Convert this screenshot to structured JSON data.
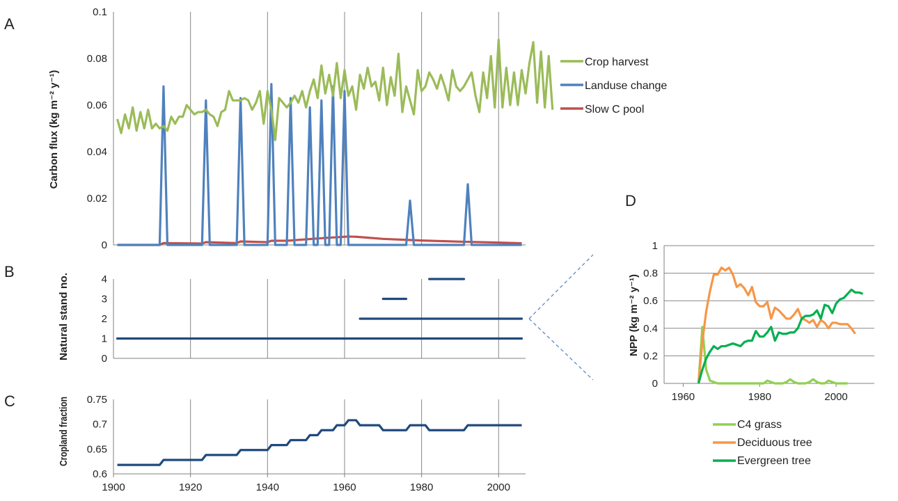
{
  "colors": {
    "crop": "#9bbb59",
    "landuse": "#4f81bd",
    "slow": "#c0504d",
    "stand": "#1f497d",
    "c4": "#8fd14f",
    "decid": "#f79646",
    "ever": "#00b050",
    "grid": "#868686",
    "axis": "#808080"
  },
  "chart_data": [
    {
      "id": "A",
      "type": "line",
      "panel_label": "A",
      "ylabel": "Carbon flux (kg m⁻² y⁻¹)",
      "ylim": [
        0,
        0.1
      ],
      "yticks": [
        "0",
        "0.02",
        "0.04",
        "0.06",
        "0.08",
        "0.1"
      ],
      "xlim": [
        1900,
        2007
      ],
      "grid": "vertical",
      "legend_position": "right",
      "series": [
        {
          "name": "Crop harvest",
          "x_start": 1901,
          "x_step": 1,
          "values": [
            0.054,
            0.048,
            0.056,
            0.05,
            0.059,
            0.049,
            0.057,
            0.05,
            0.058,
            0.05,
            0.052,
            0.05,
            0.051,
            0.049,
            0.055,
            0.052,
            0.055,
            0.055,
            0.06,
            0.058,
            0.056,
            0.057,
            0.057,
            0.058,
            0.056,
            0.055,
            0.051,
            0.057,
            0.058,
            0.066,
            0.062,
            0.062,
            0.062,
            0.063,
            0.062,
            0.058,
            0.061,
            0.066,
            0.052,
            0.066,
            0.058,
            0.045,
            0.063,
            0.061,
            0.059,
            0.061,
            0.064,
            0.061,
            0.066,
            0.059,
            0.066,
            0.071,
            0.063,
            0.077,
            0.065,
            0.073,
            0.064,
            0.078,
            0.063,
            0.075,
            0.064,
            0.068,
            0.058,
            0.073,
            0.067,
            0.076,
            0.068,
            0.07,
            0.062,
            0.076,
            0.06,
            0.072,
            0.064,
            0.082,
            0.057,
            0.068,
            0.062,
            0.056,
            0.075,
            0.066,
            0.068,
            0.074,
            0.071,
            0.067,
            0.073,
            0.068,
            0.062,
            0.075,
            0.068,
            0.066,
            0.068,
            0.071,
            0.074,
            0.064,
            0.057,
            0.074,
            0.063,
            0.081,
            0.059,
            0.088,
            0.059,
            0.076,
            0.06,
            0.074,
            0.06,
            0.075,
            0.065,
            0.078,
            0.087,
            0.061,
            0.083,
            0.059,
            0.081,
            0.058
          ]
        },
        {
          "name": "Landuse change",
          "x": [
            1901,
            1912,
            1913,
            1914,
            1923,
            1924,
            1925,
            1932,
            1933,
            1934,
            1940,
            1941,
            1942,
            1945,
            1946,
            1947,
            1950,
            1951,
            1952,
            1953,
            1954,
            1955,
            1956,
            1957,
            1958,
            1959,
            1960,
            1961,
            1976,
            1977,
            1978,
            1991,
            1992,
            1993,
            2006
          ],
          "values": [
            0,
            0,
            0.068,
            0,
            0,
            0.062,
            0,
            0,
            0.063,
            0,
            0,
            0.069,
            0,
            0,
            0.063,
            0,
            0,
            0.059,
            0,
            0,
            0.062,
            0,
            0,
            0.068,
            0,
            0,
            0.066,
            0,
            0,
            0.019,
            0,
            0,
            0.026,
            0,
            0
          ]
        },
        {
          "name": "Slow C pool",
          "x": [
            1901,
            1912,
            1913,
            1923,
            1924,
            1932,
            1933,
            1940,
            1941,
            1945,
            1950,
            1955,
            1958,
            1961,
            1963,
            1970,
            1980,
            1990,
            2000,
            2006
          ],
          "values": [
            0,
            0,
            0.0008,
            0.0006,
            0.0012,
            0.0008,
            0.0015,
            0.0012,
            0.0018,
            0.0018,
            0.0024,
            0.003,
            0.0033,
            0.0036,
            0.0035,
            0.0026,
            0.0019,
            0.0014,
            0.001,
            0.0007
          ]
        }
      ]
    },
    {
      "id": "B",
      "type": "line",
      "panel_label": "B",
      "ylabel": "Natural stand no.",
      "ylim": [
        0,
        4
      ],
      "yticks": [
        "0",
        "1",
        "2",
        "3",
        "4"
      ],
      "xlim": [
        1900,
        2007
      ],
      "grid": "vertical",
      "series": [
        {
          "segments": [
            [
              1901,
              2006,
              1
            ],
            [
              1964,
              2006,
              2
            ],
            [
              1970,
              1976,
              3
            ],
            [
              1982,
              1991,
              4
            ]
          ]
        }
      ]
    },
    {
      "id": "C",
      "type": "line",
      "panel_label": "C",
      "ylabel": "Cropland fraction",
      "ylim": [
        0.6,
        0.75
      ],
      "yticks": [
        "0.6",
        "0.65",
        "0.7",
        "0.75"
      ],
      "xlim": [
        1900,
        2007
      ],
      "xticks": [
        "1900",
        "1920",
        "1940",
        "1960",
        "1980",
        "2000"
      ],
      "grid": "vertical",
      "series": [
        {
          "x": [
            1901,
            1912,
            1913,
            1923,
            1924,
            1932,
            1933,
            1940,
            1941,
            1945,
            1946,
            1950,
            1951,
            1953,
            1954,
            1957,
            1958,
            1960,
            1961,
            1963,
            1964,
            1969,
            1970,
            1976,
            1977,
            1981,
            1982,
            1991,
            1992,
            2006
          ],
          "values": [
            0.618,
            0.618,
            0.628,
            0.628,
            0.638,
            0.638,
            0.648,
            0.648,
            0.658,
            0.658,
            0.668,
            0.668,
            0.678,
            0.678,
            0.688,
            0.688,
            0.698,
            0.698,
            0.708,
            0.708,
            0.698,
            0.698,
            0.688,
            0.688,
            0.698,
            0.698,
            0.688,
            0.688,
            0.698,
            0.698
          ]
        }
      ]
    },
    {
      "id": "D",
      "type": "line",
      "panel_label": "D",
      "ylabel": "NPP (kg m⁻² y⁻¹)",
      "ylim": [
        0,
        1
      ],
      "yticks": [
        "0",
        "0.2",
        "0.4",
        "0.6",
        "0.8",
        "1"
      ],
      "xlim": [
        1955,
        2010
      ],
      "xticks": [
        "1960",
        "1980",
        "2000"
      ],
      "grid": "horizontal",
      "legend_position": "bottom",
      "series": [
        {
          "name": "C4 grass",
          "x_start": 1964,
          "x_step": 1,
          "values": [
            0,
            0.41,
            0.1,
            0.02,
            0.01,
            0,
            0,
            0,
            0,
            0,
            0,
            0,
            0,
            0,
            0,
            0,
            0,
            0,
            0.02,
            0.01,
            0,
            0,
            0,
            0.01,
            0.03,
            0.01,
            0,
            0,
            0,
            0.01,
            0.03,
            0.01,
            0,
            0,
            0.02,
            0.01,
            0,
            0,
            0,
            0
          ]
        },
        {
          "name": "Deciduous tree",
          "x_start": 1964,
          "x_step": 1,
          "values": [
            0,
            0.3,
            0.52,
            0.67,
            0.79,
            0.79,
            0.84,
            0.82,
            0.84,
            0.79,
            0.7,
            0.72,
            0.69,
            0.64,
            0.7,
            0.59,
            0.56,
            0.56,
            0.59,
            0.47,
            0.55,
            0.53,
            0.5,
            0.47,
            0.47,
            0.5,
            0.54,
            0.47,
            0.46,
            0.44,
            0.46,
            0.41,
            0.46,
            0.44,
            0.4,
            0.44,
            0.44,
            0.43,
            0.43,
            0.43,
            0.4,
            0.36
          ]
        },
        {
          "name": "Evergreen tree",
          "x_start": 1964,
          "x_step": 1,
          "values": [
            0,
            0.1,
            0.18,
            0.23,
            0.27,
            0.25,
            0.27,
            0.27,
            0.28,
            0.29,
            0.28,
            0.27,
            0.3,
            0.31,
            0.31,
            0.38,
            0.34,
            0.34,
            0.37,
            0.41,
            0.31,
            0.37,
            0.36,
            0.36,
            0.37,
            0.37,
            0.4,
            0.47,
            0.49,
            0.49,
            0.5,
            0.53,
            0.47,
            0.57,
            0.56,
            0.51,
            0.58,
            0.61,
            0.62,
            0.65,
            0.68,
            0.66,
            0.66,
            0.65
          ]
        }
      ]
    }
  ]
}
